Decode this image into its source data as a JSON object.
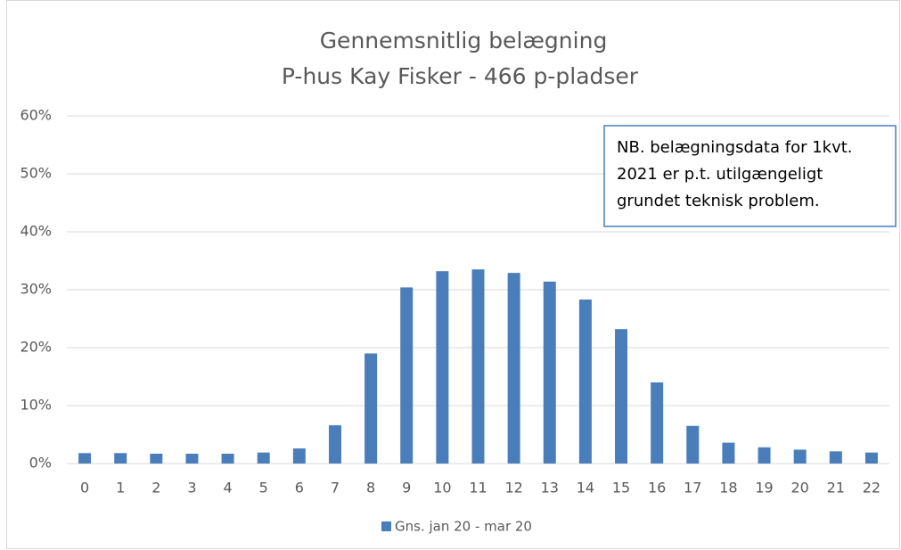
{
  "chart_data": {
    "type": "bar",
    "title": "Gennemsnitlig belægning",
    "subtitle": "P-hus Kay Fisker - 466 p-pladser",
    "annotation": [
      "NB. belægningsdata for 1kvt.",
      "2021 er p.t. utilgængeligt",
      "grundet teknisk problem."
    ],
    "categories": [
      "0",
      "1",
      "2",
      "3",
      "4",
      "5",
      "6",
      "7",
      "8",
      "9",
      "10",
      "11",
      "12",
      "13",
      "14",
      "15",
      "16",
      "17",
      "18",
      "19",
      "20",
      "21",
      "22"
    ],
    "series": [
      {
        "name": "Gns. jan 20 - mar 20",
        "color": "#4a7ebb",
        "values": [
          1.8,
          1.8,
          1.7,
          1.7,
          1.7,
          1.9,
          2.6,
          6.6,
          19,
          30.4,
          33.2,
          33.5,
          32.9,
          31.4,
          28.3,
          23.2,
          14,
          6.5,
          3.6,
          2.8,
          2.4,
          2.1,
          1.9
        ]
      }
    ],
    "ylim": [
      0,
      60
    ],
    "yticks": [
      {
        "value": 0,
        "label": "0%"
      },
      {
        "value": 10,
        "label": "10%"
      },
      {
        "value": 20,
        "label": "20%"
      },
      {
        "value": 30,
        "label": "30%"
      },
      {
        "value": 40,
        "label": "40%"
      },
      {
        "value": 50,
        "label": "50%"
      },
      {
        "value": 60,
        "label": "60%"
      }
    ],
    "grid": true,
    "legend": "bottom"
  }
}
